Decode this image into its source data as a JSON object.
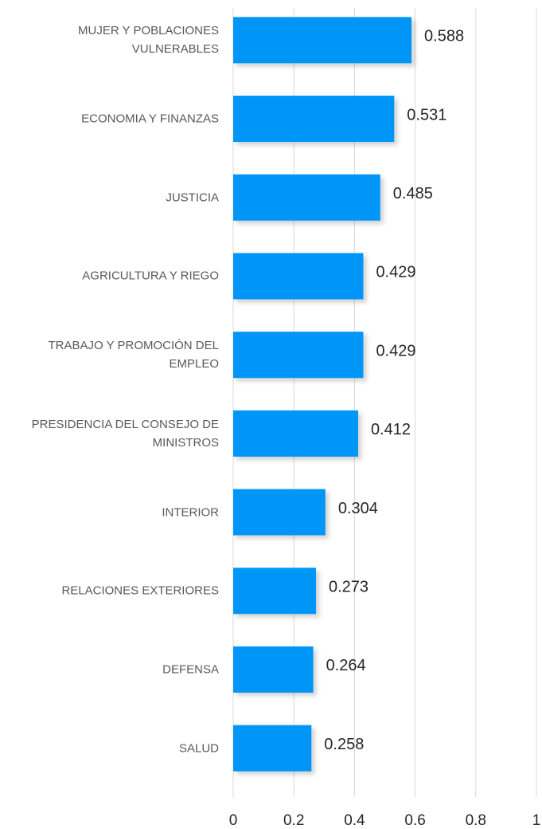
{
  "chart_data": {
    "type": "bar",
    "orientation": "horizontal",
    "categories": [
      "MUJER Y POBLACIONES VULNERABLES",
      "ECONOMIA Y FINANZAS",
      "JUSTICIA",
      "AGRICULTURA Y RIEGO",
      "TRABAJO Y PROMOCIÓN DEL EMPLEO",
      "PRESIDENCIA DEL CONSEJO DE MINISTROS",
      "INTERIOR",
      "RELACIONES EXTERIORES",
      "DEFENSA",
      "SALUD"
    ],
    "values": [
      0.588,
      0.531,
      0.485,
      0.429,
      0.429,
      0.412,
      0.304,
      0.273,
      0.264,
      0.258
    ],
    "color": "#0096f7",
    "xlim": [
      0,
      1
    ],
    "xticks": [
      0,
      0.2,
      0.4,
      0.6,
      0.8,
      1
    ],
    "grid": true
  }
}
